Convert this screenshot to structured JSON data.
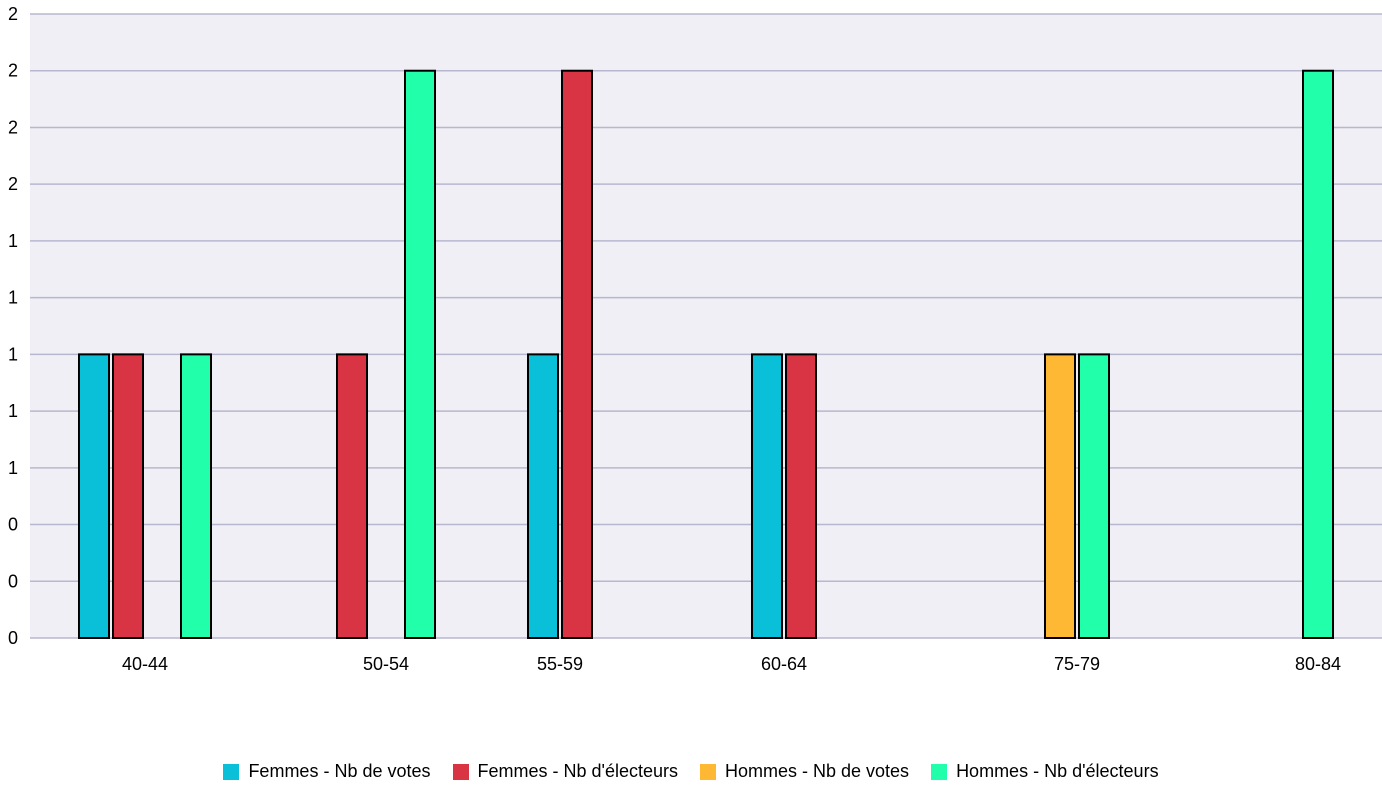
{
  "chart_data": {
    "type": "bar",
    "title": "",
    "categories": [
      "40-44",
      "50-54",
      "55-59",
      "60-64",
      "75-79",
      "80-84"
    ],
    "series": [
      {
        "name": "Femmes - Nb de votes",
        "color": "#0abfd8",
        "values": [
          1,
          0,
          1,
          1,
          0,
          0
        ]
      },
      {
        "name": "Femmes - Nb d'électeurs",
        "color": "#d93444",
        "values": [
          1,
          1,
          2,
          1,
          0,
          0
        ]
      },
      {
        "name": "Hommes - Nb de votes",
        "color": "#ffb833",
        "values": [
          0,
          0,
          0,
          0,
          1,
          0
        ]
      },
      {
        "name": "Hommes - Nb d'électeurs",
        "color": "#22ffaa",
        "values": [
          1,
          2,
          0,
          0,
          1,
          2
        ]
      }
    ],
    "ylim": [
      0,
      2.2
    ],
    "yticks": [
      0,
      0.2,
      0.4,
      0.6,
      0.8,
      1.0,
      1.2,
      1.4,
      1.6,
      1.8,
      2.0,
      2.2
    ],
    "ytick_labels": [
      "0",
      "0",
      "0",
      "1",
      "1",
      "1",
      "1",
      "1",
      "2",
      "2",
      "2",
      "2"
    ],
    "grid": true,
    "legend_position": "bottom",
    "plot_background": "#efeff5",
    "grid_color": "#b7b7cf"
  }
}
